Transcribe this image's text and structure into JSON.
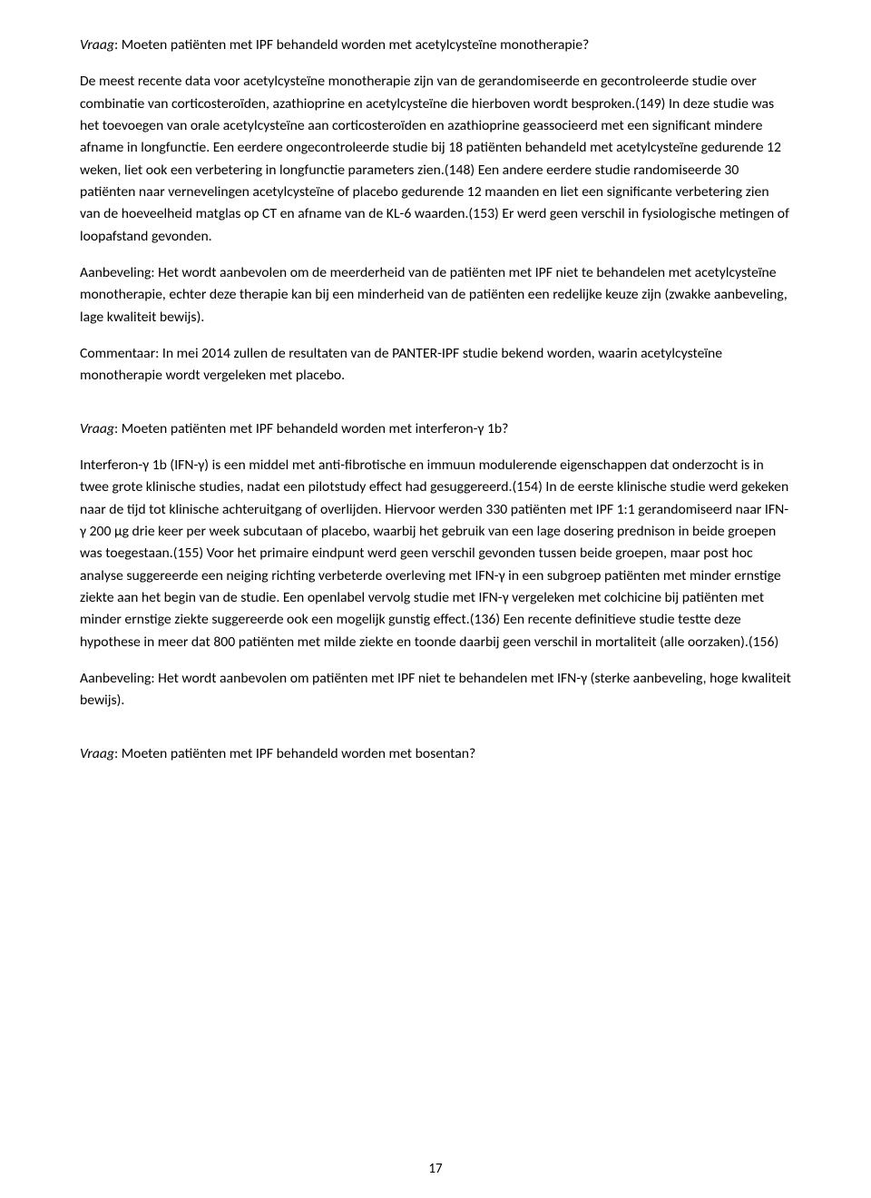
{
  "question1_label": "Vraag",
  "question1_text": ": Moeten patiënten met IPF behandeld worden met acetylcysteïne monotherapie?",
  "para1": "De meest recente data voor acetylcysteïne monotherapie zijn van de gerandomiseerde en gecontroleerde studie over combinatie van corticosteroïden, azathioprine en acetylcysteïne die hierboven wordt besproken.(149) In deze studie was het toevoegen van orale acetylcysteïne aan corticosteroïden en azathioprine geassocieerd met een significant mindere afname in longfunctie. Een eerdere ongecontroleerde studie bij 18 patiënten behandeld met acetylcysteïne gedurende 12 weken, liet ook een verbetering in longfunctie parameters zien.(148) Een andere eerdere studie randomiseerde 30 patiënten naar vernevelingen acetylcysteïne of placebo gedurende 12 maanden en liet een significante verbetering zien van de hoeveelheid matglas op CT en afname van de KL-6 waarden.(153) Er werd geen verschil in fysiologische metingen of loopafstand gevonden.",
  "para2": "Aanbeveling: Het wordt aanbevolen om de meerderheid van de patiënten met IPF niet te behandelen met acetylcysteïne monotherapie, echter deze therapie kan bij een minderheid van de patiënten een redelijke keuze zijn (zwakke aanbeveling, lage kwaliteit bewijs).",
  "para3": "Commentaar: In mei 2014 zullen de resultaten van de PANTER-IPF studie bekend worden, waarin acetylcysteïne monotherapie wordt vergeleken met placebo.",
  "question2_label": "Vraag",
  "question2_text": ": Moeten patiënten met IPF behandeld worden met interferon-γ 1b?",
  "para4": "Interferon-γ 1b (IFN-γ) is een middel met anti-fibrotische en immuun modulerende eigenschappen dat onderzocht is in twee grote klinische studies, nadat een pilotstudy effect had gesuggereerd.(154) In de eerste klinische studie werd gekeken naar de tijd tot klinische achteruitgang of overlijden. Hiervoor werden 330 patiënten met IPF 1:1 gerandomiseerd naar IFN-γ 200 μg drie keer per week subcutaan of placebo, waarbij het gebruik van een lage dosering prednison in beide groepen was toegestaan.(155) Voor het primaire eindpunt werd geen verschil gevonden tussen beide groepen, maar post hoc analyse suggereerde een neiging richting verbeterde overleving met IFN-γ in een subgroep patiënten met minder ernstige ziekte aan het begin van de studie. Een openlabel vervolg studie met IFN-γ vergeleken met colchicine bij patiënten met minder ernstige ziekte suggereerde ook een mogelijk gunstig effect.(136) Een recente definitieve studie testte deze hypothese in meer dat 800 patiënten met milde ziekte en toonde daarbij geen verschil in mortaliteit (alle oorzaken).(156)",
  "para5": "Aanbeveling: Het wordt aanbevolen om patiënten met IPF niet te behandelen met IFN-γ (sterke aanbeveling, hoge kwaliteit bewijs).",
  "question3_label": "Vraag",
  "question3_text": ": Moeten patiënten met IPF behandeld worden met bosentan?",
  "page_number": "17"
}
